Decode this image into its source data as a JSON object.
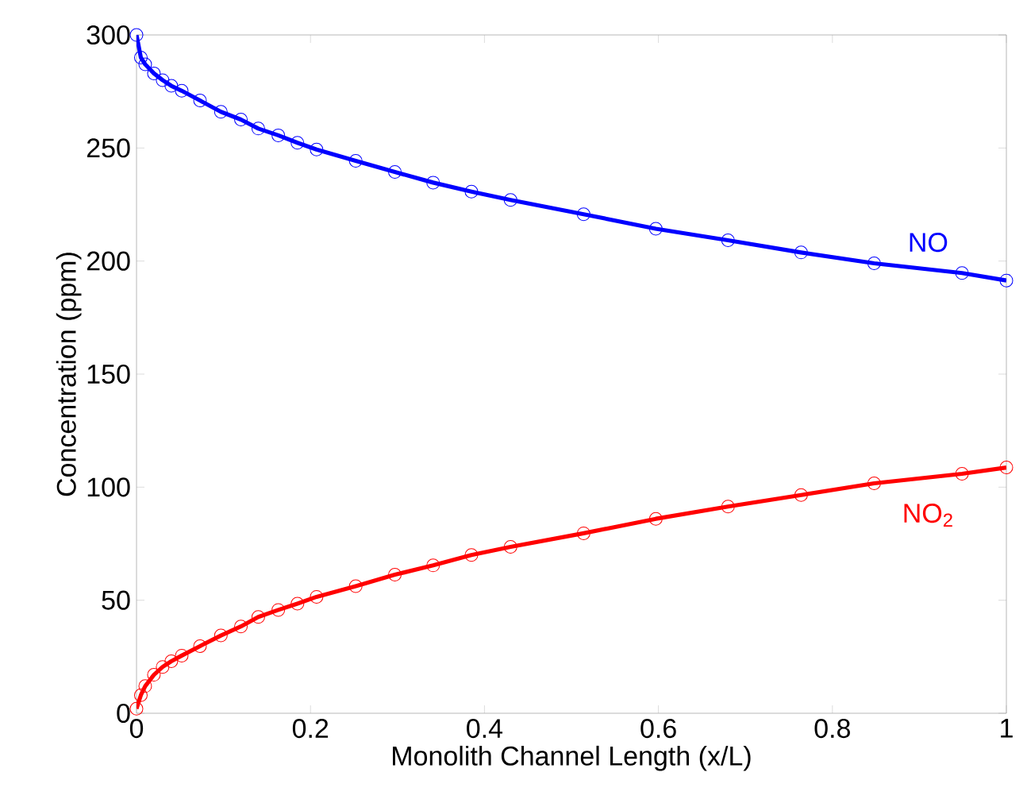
{
  "chart_data": {
    "type": "line",
    "xlabel": "Monolith Channel Length (x/L)",
    "ylabel": "Concentration (ppm)",
    "x": [
      0,
      0.005,
      0.01,
      0.02,
      0.03,
      0.04,
      0.052,
      0.073,
      0.097,
      0.12,
      0.14,
      0.163,
      0.185,
      0.207,
      0.252,
      0.297,
      0.341,
      0.385,
      0.43,
      0.514,
      0.597,
      0.68,
      0.764,
      0.848,
      0.949,
      1.0
    ],
    "series": [
      {
        "name": "NO",
        "color": "#0000ff",
        "values": [
          300,
          290,
          287,
          283,
          280,
          277.5,
          275.3,
          271,
          266,
          262.6,
          258.6,
          255.6,
          252.3,
          249.3,
          244.3,
          239.4,
          234.7,
          230.7,
          227,
          220.7,
          214.3,
          209.2,
          203.8,
          199,
          194.7,
          191.4
        ]
      },
      {
        "name": "NO$_{2}$",
        "color": "#ff0000",
        "values": [
          2,
          8,
          12,
          17,
          20.5,
          23,
          25.5,
          29.7,
          34.4,
          38.4,
          42.6,
          45.7,
          48.5,
          51.5,
          56.2,
          61.3,
          65.4,
          70,
          73.6,
          79.6,
          86,
          91.4,
          96.5,
          101.7,
          105.9,
          108.7
        ]
      }
    ],
    "xlim": [
      0,
      1
    ],
    "ylim": [
      0,
      300
    ],
    "xticks": [
      0,
      0.2,
      0.4,
      0.6,
      0.8,
      1
    ],
    "yticks": [
      0,
      50,
      100,
      150,
      200,
      250,
      300
    ],
    "grid": false,
    "legend": false,
    "marker": "circle",
    "line_style": "solid"
  }
}
